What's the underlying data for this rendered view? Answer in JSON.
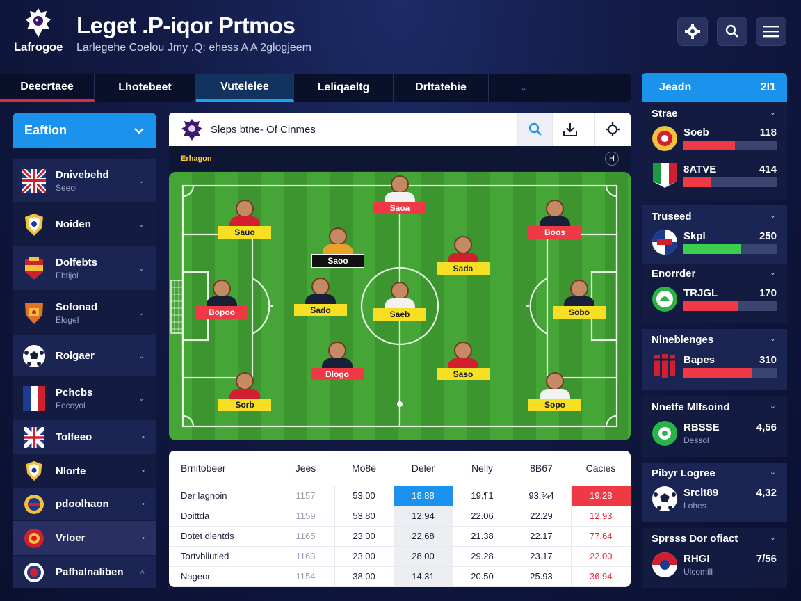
{
  "header": {
    "logo_text": "Lafrogoe",
    "title": "Leget .P-iqor Prtmos",
    "subtitle": "Larlegehe  Coelou Jmy .Q: ehess A A 2glogjeem"
  },
  "tabs": [
    {
      "label": "Deecrtaee"
    },
    {
      "label": "Lhotebeet"
    },
    {
      "label": "Vutelelee"
    },
    {
      "label": "Leliqaeltg"
    },
    {
      "label": "Drltatehie"
    }
  ],
  "sidebar": {
    "header": "Eaftion",
    "items": [
      {
        "label": "Dnivebehd",
        "sub": "Seeol"
      },
      {
        "label": "Noiden",
        "sub": ""
      },
      {
        "label": "Dolfebts",
        "sub": "Ebtijol"
      },
      {
        "label": "Sofonad",
        "sub": "Elogel"
      },
      {
        "label": "Rolgaer",
        "sub": ""
      },
      {
        "label": "Pchcbs",
        "sub": "Eecoyol"
      },
      {
        "label": "Tolfeeo",
        "sub": ""
      },
      {
        "label": "Nlorte",
        "sub": ""
      },
      {
        "label": "pdoolhaon",
        "sub": ""
      },
      {
        "label": "Vrloer",
        "sub": ""
      },
      {
        "label": "Pafhalnaliben",
        "sub": ""
      }
    ]
  },
  "pitch_panel": {
    "title": "Sleps btne- Of Cinmes",
    "sub_label": "Erhagon",
    "badge": "H",
    "players": [
      {
        "tag": "Saoa",
        "color": "red"
      },
      {
        "tag": "Sauo",
        "color": "yellow"
      },
      {
        "tag": "Boos",
        "color": "red"
      },
      {
        "tag": "Saoo",
        "color": "black"
      },
      {
        "tag": "Sada",
        "color": "yellow"
      },
      {
        "tag": "Bopoo",
        "color": "red"
      },
      {
        "tag": "Sado",
        "color": "yellow"
      },
      {
        "tag": "Saeb",
        "color": "yellow"
      },
      {
        "tag": "Sobo",
        "color": "yellow"
      },
      {
        "tag": "Dlogo",
        "color": "red"
      },
      {
        "tag": "Saso",
        "color": "yellow"
      },
      {
        "tag": "Sorb",
        "color": "yellow"
      },
      {
        "tag": "Sopo",
        "color": "yellow"
      }
    ]
  },
  "table": {
    "headers": [
      "Brnitobeer",
      "Jees",
      "Mo8e",
      "Deler",
      "Nelly",
      "8B67",
      "Cacies"
    ],
    "rows": [
      [
        "Der lagnoin",
        "1157",
        "53.00",
        "18.88",
        "19.¶1",
        "93.¾4",
        "19.28"
      ],
      [
        "Doittda",
        "1159",
        "53.80",
        "12.94",
        "22.06",
        "22.29",
        "12.93"
      ],
      [
        "Dotet dlentds",
        "1165",
        "23.00",
        "22.68",
        "21.38",
        "22.17",
        "77.64"
      ],
      [
        "Tortvbliutied",
        "1163",
        "23.00",
        "28.00",
        "29.28",
        "23.17",
        "22.00"
      ],
      [
        "Nageor",
        "1154",
        "38.00",
        "14.31",
        "20.50",
        "25.93",
        "36.94"
      ]
    ]
  },
  "right_panel": {
    "header_label": "Jeadn",
    "header_value": "2I1",
    "sections": [
      {
        "title": "Strae",
        "rows": [
          {
            "name": "Soeb",
            "value": "118",
            "progress": 0.55,
            "bar_color": "#ef3a45"
          },
          {
            "name": "8ATVE",
            "value": "414",
            "progress": 0.3,
            "bar_color": "#ef3a45"
          }
        ]
      },
      {
        "title": "Truseed",
        "rows": [
          {
            "name": "Skpl",
            "value": "250",
            "progress": 0.62,
            "bar_color": "#3ccf4e"
          }
        ]
      },
      {
        "title": "Enorrder",
        "rows": [
          {
            "name": "TRJGL",
            "value": "170",
            "progress": 0.58,
            "bar_color": "#ef3a45"
          }
        ]
      },
      {
        "title": "Nlneblenges",
        "rows": [
          {
            "name": "Bapes",
            "value": "310",
            "progress": 0.74,
            "bar_color": "#ef3a45"
          }
        ]
      },
      {
        "title": "Nnetfe Mlfsoind",
        "rows": [
          {
            "name": "RBSSE",
            "value": "4,56",
            "sub": "Dessol"
          }
        ]
      },
      {
        "title": "Pibyr Logree",
        "rows": [
          {
            "name": "Srclt89",
            "value": "4,32",
            "sub": "Lohes"
          }
        ]
      },
      {
        "title": "Sprsss Dor ofiact",
        "rows": [
          {
            "name": "RHGI",
            "value": "7/56",
            "sub": "Ulcomill"
          }
        ]
      }
    ]
  },
  "colors": {
    "accent_blue": "#1b93ec",
    "accent_red": "#e02a3c",
    "tag_yellow": "#f7e024",
    "pitch_green": "#45a637"
  }
}
